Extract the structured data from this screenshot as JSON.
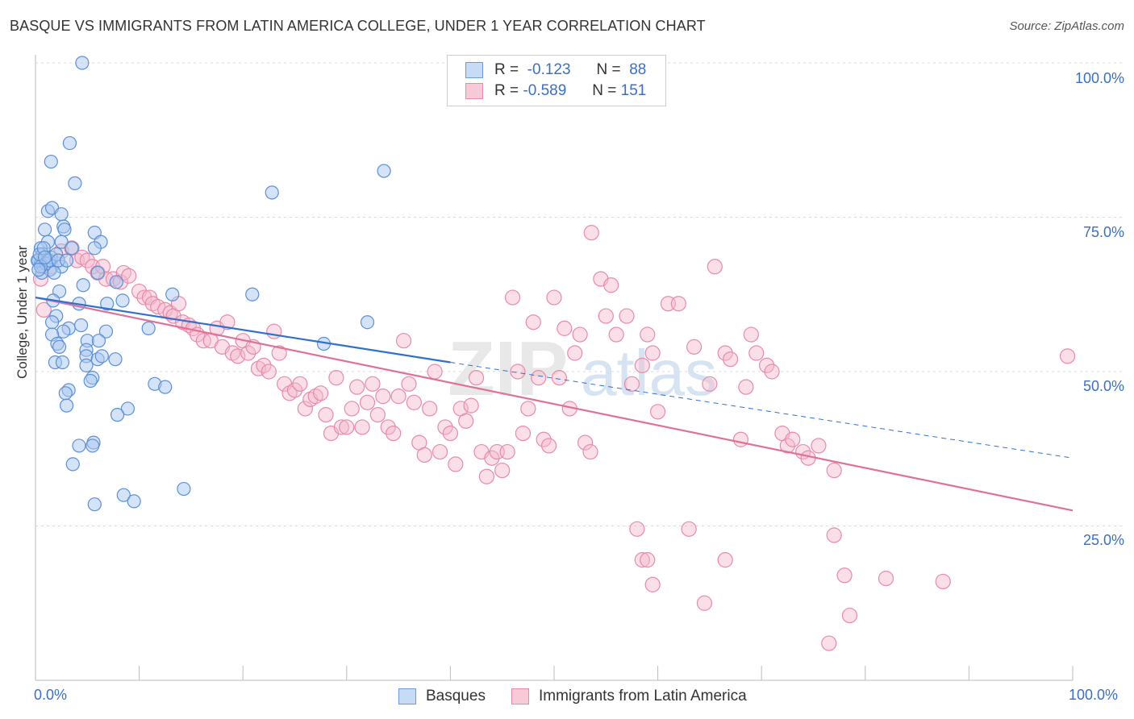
{
  "title": "BASQUE VS IMMIGRANTS FROM LATIN AMERICA COLLEGE, UNDER 1 YEAR CORRELATION CHART",
  "source": "Source: ZipAtlas.com",
  "watermark": {
    "part1": "ZIP",
    "part2": "atlas"
  },
  "legend": {
    "rows": [
      {
        "r_label": "R =",
        "r_value": "-0.123",
        "n_label": "N =",
        "n_value": "88"
      },
      {
        "r_label": "R =",
        "r_value": "-0.589",
        "n_label": "N =",
        "n_value": "151"
      }
    ]
  },
  "bottom_legend": {
    "series1": "Basques",
    "series2": "Immigrants from Latin America"
  },
  "colors": {
    "basques_fill": "#aac8f0",
    "basques_stroke": "#5b8fd6",
    "basques_line": "#2f6fcf",
    "latin_fill": "#f5b8cb",
    "latin_stroke": "#e88aa8",
    "latin_line": "#e0709a",
    "axis_text": "#3a6fc4",
    "grid": "#d8d8d8"
  },
  "chart_data": {
    "type": "scatter",
    "title": "BASQUE VS IMMIGRANTS FROM LATIN AMERICA COLLEGE, UNDER 1 YEAR CORRELATION CHART",
    "xlabel": "",
    "ylabel": "College, Under 1 year",
    "xlim": [
      0,
      100
    ],
    "ylim": [
      0,
      100
    ],
    "x_tick_labels": [
      "0.0%",
      "100.0%"
    ],
    "y_ticks": [
      25,
      50,
      75,
      100
    ],
    "y_tick_labels": [
      "25.0%",
      "50.0%",
      "75.0%",
      "100.0%"
    ],
    "grid": true,
    "legend_position": "top-center",
    "series": [
      {
        "name": "Basques",
        "trend": {
          "x0": 0,
          "y0": 62,
          "x1": 40,
          "y1": 51.5,
          "dashed_to_x": 100,
          "dashed_to_y": 36
        },
        "points": [
          [
            4.5,
            100
          ],
          [
            3.3,
            87
          ],
          [
            1.5,
            84
          ],
          [
            3.8,
            80.5
          ],
          [
            22.8,
            79
          ],
          [
            33.6,
            82.5
          ],
          [
            1.2,
            76
          ],
          [
            1.6,
            76.5
          ],
          [
            2.5,
            75.5
          ],
          [
            2.7,
            73.5
          ],
          [
            0.9,
            73
          ],
          [
            2.8,
            73
          ],
          [
            5.7,
            72.5
          ],
          [
            1.2,
            71
          ],
          [
            2.5,
            71
          ],
          [
            6.3,
            71
          ],
          [
            0.5,
            70
          ],
          [
            3.5,
            70
          ],
          [
            5.7,
            70
          ],
          [
            0.7,
            69
          ],
          [
            1.5,
            68.5
          ],
          [
            0.3,
            68
          ],
          [
            0.5,
            67.5
          ],
          [
            2.5,
            67
          ],
          [
            0.8,
            67
          ],
          [
            1.4,
            66.5
          ],
          [
            6.0,
            66
          ],
          [
            7.8,
            64.5
          ],
          [
            4.6,
            64
          ],
          [
            2.3,
            63
          ],
          [
            13.2,
            62.5
          ],
          [
            20.9,
            62.5
          ],
          [
            1.7,
            61.5
          ],
          [
            8.4,
            61.5
          ],
          [
            4.2,
            61
          ],
          [
            6.9,
            61
          ],
          [
            2.0,
            59
          ],
          [
            1.6,
            58
          ],
          [
            3.2,
            57
          ],
          [
            4.4,
            57.5
          ],
          [
            32.0,
            58
          ],
          [
            2.7,
            56.5
          ],
          [
            1.6,
            56
          ],
          [
            10.9,
            57
          ],
          [
            6.8,
            56.5
          ],
          [
            5.0,
            55
          ],
          [
            2.1,
            54.5
          ],
          [
            6.1,
            55
          ],
          [
            2.3,
            54
          ],
          [
            4.9,
            53.5
          ],
          [
            27.8,
            54.5
          ],
          [
            4.9,
            52.5
          ],
          [
            6.0,
            52
          ],
          [
            1.9,
            51.5
          ],
          [
            7.7,
            52
          ],
          [
            6.4,
            52.5
          ],
          [
            2.6,
            51.5
          ],
          [
            4.9,
            51
          ],
          [
            5.5,
            49
          ],
          [
            5.3,
            48.5
          ],
          [
            11.5,
            48
          ],
          [
            12.5,
            47.5
          ],
          [
            3.2,
            47
          ],
          [
            2.9,
            46.5
          ],
          [
            8.9,
            44
          ],
          [
            7.9,
            43
          ],
          [
            3.0,
            44.5
          ],
          [
            4.2,
            38
          ],
          [
            5.6,
            38.5
          ],
          [
            5.5,
            38
          ],
          [
            3.6,
            35
          ],
          [
            8.5,
            30
          ],
          [
            14.3,
            31
          ],
          [
            9.5,
            29
          ],
          [
            5.7,
            28.5
          ],
          [
            0.2,
            68
          ],
          [
            0.4,
            69
          ],
          [
            0.6,
            66
          ],
          [
            1.0,
            67.5
          ],
          [
            0.8,
            70
          ],
          [
            1.3,
            68
          ],
          [
            0.5,
            67
          ],
          [
            2.0,
            69
          ],
          [
            2.2,
            68
          ],
          [
            1.8,
            66
          ],
          [
            3.0,
            68
          ],
          [
            0.3,
            66.5
          ],
          [
            0.9,
            68.5
          ]
        ]
      },
      {
        "name": "Immigrants from Latin America",
        "trend": {
          "x0": 0,
          "y0": 62,
          "x1": 100,
          "y1": 27.5
        },
        "points": [
          [
            0.5,
            65
          ],
          [
            0.8,
            60
          ],
          [
            1.5,
            67
          ],
          [
            2.5,
            69.5
          ],
          [
            3.5,
            70
          ],
          [
            4.0,
            68
          ],
          [
            4.5,
            68.5
          ],
          [
            5.0,
            68
          ],
          [
            5.5,
            67
          ],
          [
            6.0,
            66
          ],
          [
            6.5,
            67
          ],
          [
            6.8,
            65
          ],
          [
            7.5,
            65
          ],
          [
            8.2,
            64.5
          ],
          [
            8.5,
            66
          ],
          [
            9.0,
            65.5
          ],
          [
            10.0,
            63
          ],
          [
            10.5,
            62
          ],
          [
            11.0,
            62
          ],
          [
            11.3,
            61
          ],
          [
            11.8,
            60.5
          ],
          [
            12.5,
            60
          ],
          [
            13.0,
            59.5
          ],
          [
            13.3,
            59
          ],
          [
            13.8,
            61
          ],
          [
            14.2,
            58
          ],
          [
            14.8,
            57.5
          ],
          [
            15.2,
            57
          ],
          [
            15.6,
            56
          ],
          [
            16.2,
            55
          ],
          [
            16.9,
            55
          ],
          [
            17.5,
            57
          ],
          [
            18.0,
            54
          ],
          [
            18.5,
            58
          ],
          [
            19.0,
            53
          ],
          [
            19.5,
            52.5
          ],
          [
            20.0,
            55
          ],
          [
            20.5,
            53
          ],
          [
            21.0,
            54
          ],
          [
            21.5,
            50.5
          ],
          [
            22.0,
            51
          ],
          [
            22.5,
            50
          ],
          [
            23.0,
            56.5
          ],
          [
            23.5,
            53
          ],
          [
            24.0,
            48
          ],
          [
            24.5,
            46.5
          ],
          [
            25.0,
            47
          ],
          [
            25.5,
            48
          ],
          [
            26.0,
            44
          ],
          [
            26.5,
            45.5
          ],
          [
            27.0,
            46
          ],
          [
            27.5,
            46.5
          ],
          [
            28.0,
            43
          ],
          [
            28.5,
            40
          ],
          [
            29.0,
            49
          ],
          [
            29.5,
            41
          ],
          [
            30.0,
            41
          ],
          [
            30.5,
            44
          ],
          [
            31.0,
            47.5
          ],
          [
            31.5,
            41
          ],
          [
            32.0,
            45
          ],
          [
            32.5,
            48
          ],
          [
            33.0,
            43
          ],
          [
            33.5,
            46
          ],
          [
            34.0,
            41
          ],
          [
            34.5,
            40
          ],
          [
            35.0,
            46
          ],
          [
            35.5,
            55
          ],
          [
            36.0,
            48
          ],
          [
            36.5,
            45
          ],
          [
            37.0,
            38.5
          ],
          [
            37.5,
            36.5
          ],
          [
            38.0,
            44
          ],
          [
            38.5,
            50
          ],
          [
            39.0,
            37
          ],
          [
            39.5,
            41
          ],
          [
            40.0,
            40
          ],
          [
            40.5,
            35
          ],
          [
            41.0,
            44
          ],
          [
            41.5,
            42
          ],
          [
            42.0,
            44.5
          ],
          [
            42.5,
            49
          ],
          [
            43.0,
            37
          ],
          [
            43.5,
            33
          ],
          [
            44.0,
            36
          ],
          [
            44.5,
            37
          ],
          [
            45.0,
            34
          ],
          [
            45.5,
            37
          ],
          [
            46.0,
            62
          ],
          [
            46.5,
            50
          ],
          [
            47.0,
            40
          ],
          [
            47.5,
            44
          ],
          [
            48.0,
            58
          ],
          [
            48.5,
            49
          ],
          [
            49.0,
            39
          ],
          [
            49.5,
            38
          ],
          [
            50.0,
            62
          ],
          [
            50.5,
            49
          ],
          [
            51.0,
            57
          ],
          [
            51.5,
            44
          ],
          [
            52.0,
            53
          ],
          [
            52.5,
            56
          ],
          [
            53.0,
            38.5
          ],
          [
            53.5,
            37
          ],
          [
            53.6,
            72.5
          ],
          [
            54.5,
            65
          ],
          [
            55.0,
            59
          ],
          [
            55.5,
            64
          ],
          [
            56.0,
            56
          ],
          [
            57.0,
            59
          ],
          [
            57.5,
            48
          ],
          [
            58.5,
            51
          ],
          [
            59.0,
            56
          ],
          [
            59.5,
            53
          ],
          [
            60.0,
            43.5
          ],
          [
            61.0,
            61
          ],
          [
            62.0,
            61
          ],
          [
            63.5,
            54
          ],
          [
            65.0,
            48
          ],
          [
            65.5,
            67
          ],
          [
            66.5,
            53
          ],
          [
            67.0,
            52
          ],
          [
            68.0,
            39
          ],
          [
            68.5,
            47.5
          ],
          [
            69.0,
            56
          ],
          [
            69.5,
            53
          ],
          [
            70.5,
            51
          ],
          [
            71.0,
            50
          ],
          [
            72.0,
            40
          ],
          [
            72.5,
            38
          ],
          [
            73.0,
            39
          ],
          [
            74.0,
            37
          ],
          [
            74.5,
            36
          ],
          [
            75.5,
            38
          ],
          [
            77.0,
            34
          ],
          [
            58.0,
            24.5
          ],
          [
            58.5,
            19.5
          ],
          [
            59.0,
            19.5
          ],
          [
            59.5,
            15.5
          ],
          [
            63.0,
            24.5
          ],
          [
            64.5,
            12.5
          ],
          [
            66.5,
            19.5
          ],
          [
            77.0,
            23.5
          ],
          [
            78.0,
            17
          ],
          [
            78.5,
            10.5
          ],
          [
            82.0,
            16.5
          ],
          [
            87.5,
            16
          ],
          [
            99.5,
            52.5
          ],
          [
            76.5,
            6.0
          ]
        ]
      }
    ]
  }
}
